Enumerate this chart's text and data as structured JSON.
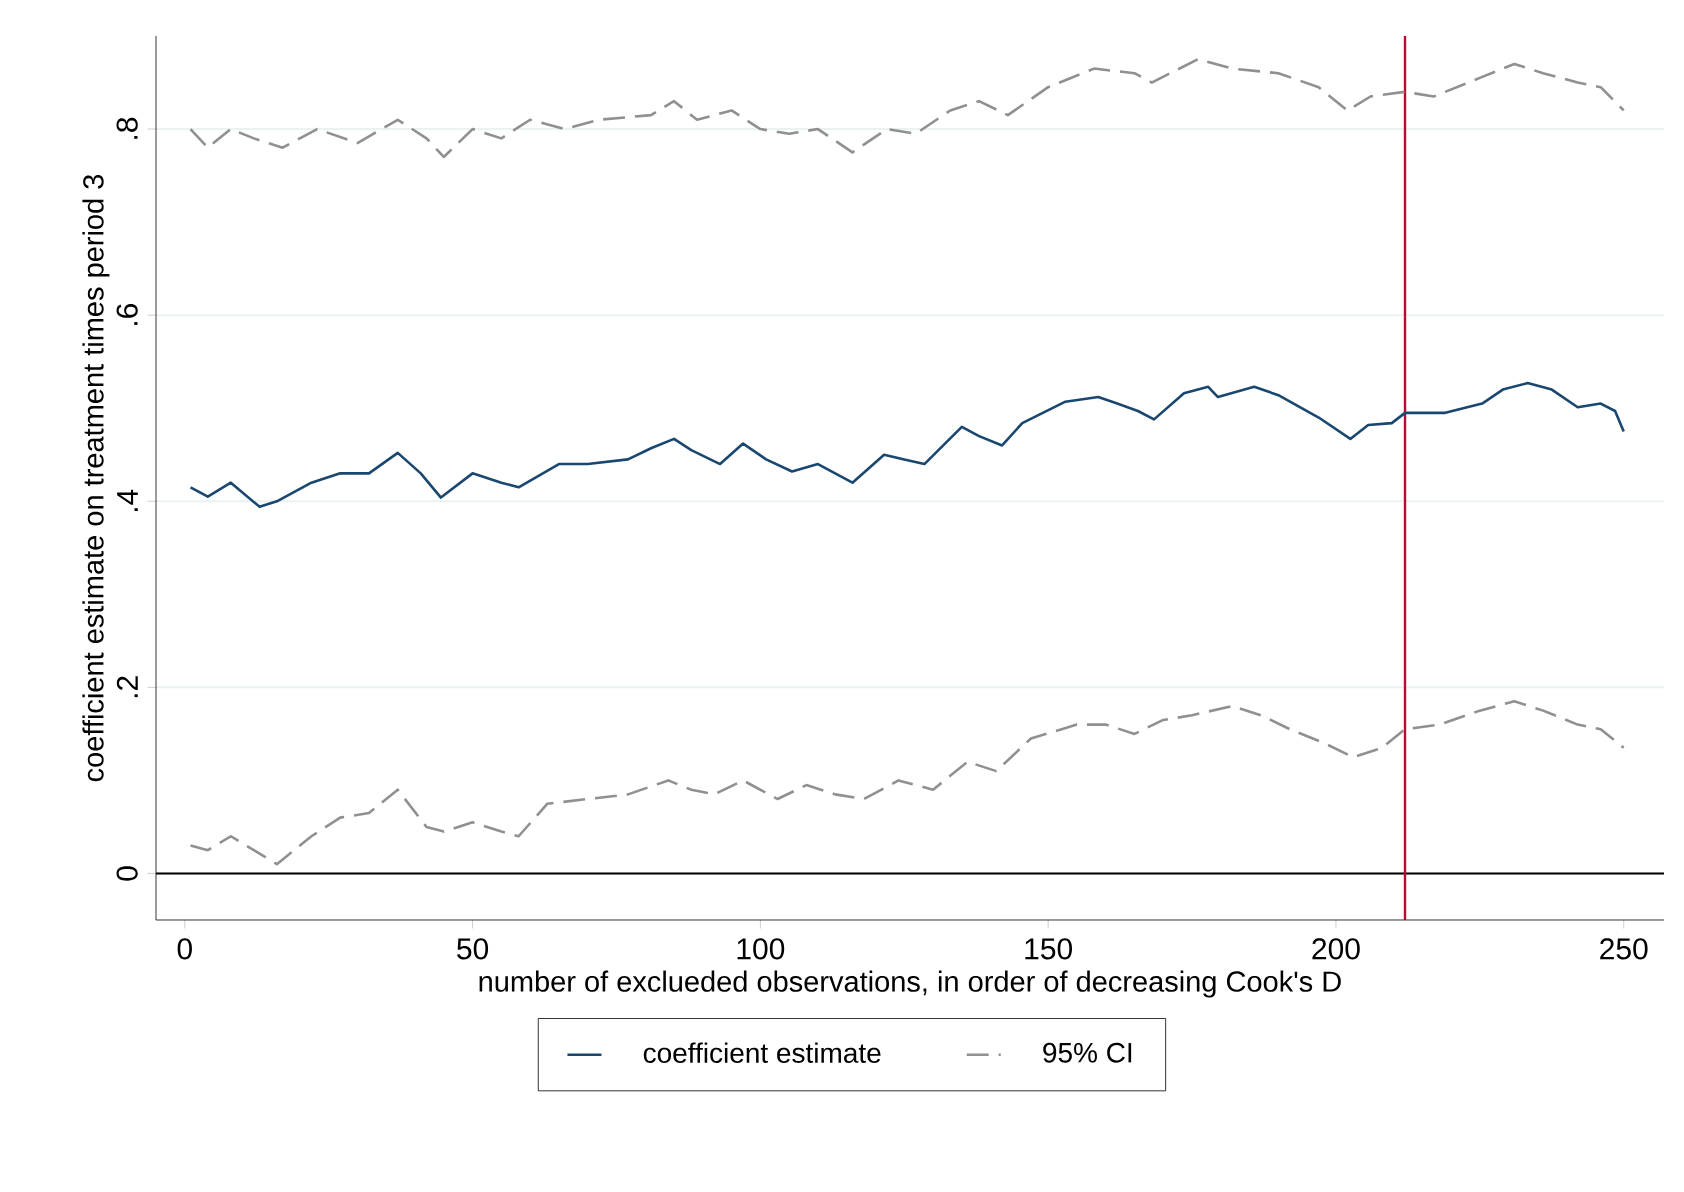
{
  "chart_data": {
    "type": "line",
    "xlabel": "number of exclueded observations, in order of decreasing Cook's D",
    "ylabel": "coefficient estimate on treatment times period 3",
    "xlim": [
      -5,
      257
    ],
    "ylim": [
      -0.05,
      0.9
    ],
    "xticks": [
      0,
      50,
      100,
      150,
      200,
      250
    ],
    "yticks": [
      {
        "value": 0,
        "label": "0"
      },
      {
        "value": 0.2,
        "label": ".2"
      },
      {
        "value": 0.4,
        "label": ".4"
      },
      {
        "value": 0.6,
        "label": ".6"
      },
      {
        "value": 0.8,
        "label": ".8"
      }
    ],
    "grid": "y",
    "legend": "bottom",
    "marker": "none",
    "ref_lines": [
      {
        "axis": "y",
        "value": 0,
        "color": "#000000"
      },
      {
        "axis": "x",
        "value": 212,
        "color": "#c10534"
      }
    ],
    "series": [
      {
        "name": "coefficient estimate",
        "color": "#1a476f",
        "line_style": "solid",
        "x": [
          1,
          4,
          8,
          13,
          16,
          22,
          27,
          32,
          37,
          41,
          44.5,
          50,
          55,
          58,
          65,
          70,
          77,
          81,
          85,
          88,
          93,
          97,
          101,
          105.5,
          110,
          116,
          121.5,
          125,
          128.5,
          135,
          138,
          142,
          145.5,
          153,
          158.7,
          162,
          165.6,
          168.4,
          173.6,
          177.8,
          179.5,
          185.8,
          190,
          197,
          202.5,
          205.6,
          209.7,
          212,
          219,
          225.4,
          229,
          233.3,
          237.5,
          242,
          246,
          248.5,
          250
        ],
        "values": [
          0.415,
          0.405,
          0.42,
          0.394,
          0.4,
          0.42,
          0.43,
          0.43,
          0.452,
          0.43,
          0.404,
          0.43,
          0.42,
          0.415,
          0.44,
          0.44,
          0.445,
          0.457,
          0.467,
          0.455,
          0.44,
          0.462,
          0.445,
          0.432,
          0.44,
          0.42,
          0.45,
          0.445,
          0.44,
          0.48,
          0.47,
          0.46,
          0.484,
          0.507,
          0.512,
          0.505,
          0.497,
          0.488,
          0.516,
          0.523,
          0.512,
          0.523,
          0.514,
          0.49,
          0.467,
          0.482,
          0.484,
          0.495,
          0.495,
          0.505,
          0.52,
          0.527,
          0.52,
          0.501,
          0.505,
          0.497,
          0.475
        ]
      },
      {
        "name": "95% CI",
        "color": "#909090",
        "line_style": "dashed",
        "x": [
          1,
          4,
          8,
          12,
          17,
          23,
          30,
          37,
          42,
          45,
          50,
          55,
          60,
          66,
          72,
          81,
          85,
          89,
          95,
          100,
          105,
          110,
          116,
          122,
          127,
          133,
          138,
          143,
          150,
          158,
          165,
          168,
          176,
          182,
          190,
          197,
          202,
          206,
          212,
          217,
          225,
          231,
          236,
          242,
          246,
          250
        ],
        "values": [
          0.8,
          0.78,
          0.8,
          0.79,
          0.78,
          0.8,
          0.785,
          0.81,
          0.79,
          0.77,
          0.8,
          0.79,
          0.81,
          0.8,
          0.81,
          0.815,
          0.83,
          0.81,
          0.82,
          0.8,
          0.795,
          0.8,
          0.775,
          0.8,
          0.795,
          0.82,
          0.83,
          0.815,
          0.845,
          0.865,
          0.86,
          0.85,
          0.875,
          0.865,
          0.86,
          0.845,
          0.82,
          0.835,
          0.84,
          0.835,
          0.855,
          0.87,
          0.86,
          0.85,
          0.845,
          0.82
        ]
      },
      {
        "color": "#909090",
        "line_style": "dashed",
        "x": [
          1,
          4,
          8,
          12,
          16,
          22,
          27,
          32,
          37,
          42,
          45,
          50,
          55,
          58,
          63,
          70,
          77,
          84,
          88,
          92,
          97,
          103,
          108,
          113,
          118,
          124,
          130,
          136,
          141,
          147,
          155,
          160,
          165,
          170,
          175,
          182,
          187,
          192,
          198,
          203,
          208,
          212,
          218,
          225,
          231,
          236,
          242,
          246,
          250
        ],
        "values": [
          0.03,
          0.025,
          0.04,
          0.025,
          0.01,
          0.04,
          0.06,
          0.065,
          0.09,
          0.05,
          0.045,
          0.055,
          0.045,
          0.04,
          0.075,
          0.08,
          0.085,
          0.1,
          0.09,
          0.085,
          0.1,
          0.08,
          0.095,
          0.085,
          0.08,
          0.1,
          0.09,
          0.12,
          0.11,
          0.145,
          0.16,
          0.16,
          0.15,
          0.165,
          0.17,
          0.18,
          0.17,
          0.155,
          0.14,
          0.125,
          0.135,
          0.155,
          0.16,
          0.175,
          0.185,
          0.175,
          0.16,
          0.155,
          0.135
        ]
      }
    ]
  }
}
